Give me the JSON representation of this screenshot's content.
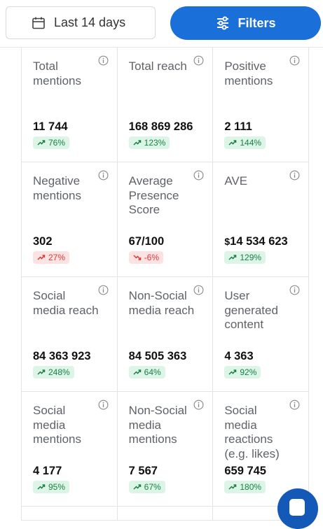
{
  "topbar": {
    "date_range_label": "Last 14 days",
    "filters_label": "Filters"
  },
  "colors": {
    "primary": "#1b6fd8",
    "positive_bg": "#dcf5e7",
    "positive_text": "#1a7f46",
    "negative_bg": "#fde2e2",
    "negative_text": "#d93838"
  },
  "metrics": [
    {
      "label": "Total mentions",
      "value": "11 744",
      "change": "76%",
      "trend": "up"
    },
    {
      "label": "Total reach",
      "value": "168 869 286",
      "change": "123%",
      "trend": "up"
    },
    {
      "label": "Positive mentions",
      "value": "2 111",
      "change": "144%",
      "trend": "up"
    },
    {
      "label": "Negative mentions",
      "value": "302",
      "change": "27%",
      "trend": "up-negative"
    },
    {
      "label": "Average Presence Score",
      "value": "67/100",
      "change": "-6%",
      "trend": "down"
    },
    {
      "label": "AVE",
      "currency": "$",
      "value": "14 534 623",
      "change": "129%",
      "trend": "up"
    },
    {
      "label": "Social media reach",
      "value": "84 363 923",
      "change": "248%",
      "trend": "up"
    },
    {
      "label": "Non-Social media reach",
      "value": "84 505 363",
      "change": "64%",
      "trend": "up"
    },
    {
      "label": "User generated content",
      "value": "4 363",
      "change": "92%",
      "trend": "up"
    },
    {
      "label": "Social media mentions",
      "value": "4 177",
      "change": "95%",
      "trend": "up"
    },
    {
      "label": "Non-Social media mentions",
      "value": "7 567",
      "change": "67%",
      "trend": "up"
    },
    {
      "label": "Social media reactions (e.g. likes)",
      "value": "659 745",
      "change": "180%",
      "trend": "up"
    }
  ]
}
